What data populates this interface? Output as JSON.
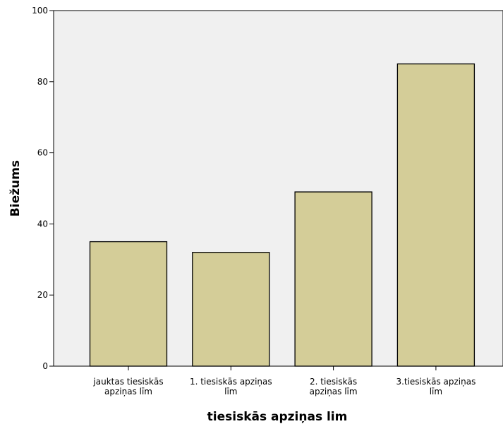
{
  "chart_data": {
    "type": "bar",
    "title": "",
    "xlabel": "tiesiskās apziņas lim",
    "ylabel": "Biežums",
    "ylim": [
      0,
      100
    ],
    "yticks": [
      0,
      20,
      40,
      60,
      80,
      100
    ],
    "categories": [
      [
        "jauktas tiesiskās",
        "apziņas līm"
      ],
      [
        "1. tiesiskās apziņas",
        "līm"
      ],
      [
        "2.  tiesiskās",
        "apziņas līm"
      ],
      [
        "3.tiesiskās apziņas",
        "līm"
      ]
    ],
    "values": [
      35,
      32,
      49,
      85
    ],
    "colors": {
      "bar_fill": "#d4cd98",
      "bar_stroke": "#000000",
      "plot_background": "#f0f0f0"
    },
    "grid": false,
    "legend": "none"
  }
}
